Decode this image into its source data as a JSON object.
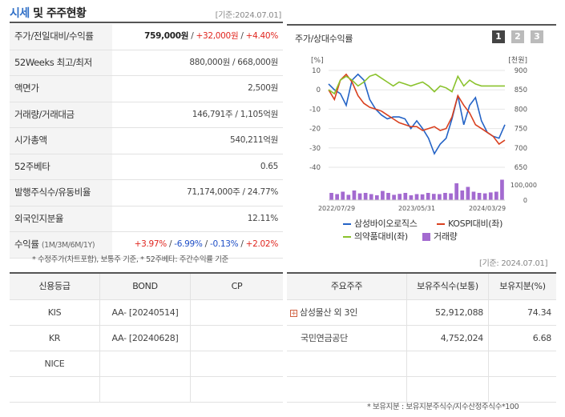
{
  "header": {
    "title_accent": "시세",
    "title_rest": " 및 주주현황",
    "base_date": "[기준:2024.07.01]"
  },
  "price_table": {
    "rows": [
      {
        "label": "주가/전일대비/수익률",
        "value_price": "759,000원",
        "sep1": " / ",
        "value_change": "+32,000원",
        "sep2": " / ",
        "value_rate": "+4.40%"
      },
      {
        "label": "52Weeks 최고/최저",
        "value": "880,000원 / 668,000원"
      },
      {
        "label": "액면가",
        "value": "2,500원"
      },
      {
        "label": "거래량/거래대금",
        "value": "146,791주 / 1,105억원"
      },
      {
        "label": "시가총액",
        "value": "540,211억원"
      },
      {
        "label": "52주베타",
        "value": "0.65"
      },
      {
        "label": "발행주식수/유동비율",
        "value": "71,174,000주 / 24.77%"
      },
      {
        "label": "외국인지분율",
        "value": "12.11%"
      },
      {
        "label": "수익률",
        "label_sub": "(1M/3M/6M/1Y)",
        "r1": "+3.97%",
        "r2": "-6.99%",
        "r3": "-0.13%",
        "r4": "+2.02%",
        "sep": " / "
      }
    ],
    "note": "* 수정주가(차트포함), 보통주 기준, * 52주베타: 주간수익률 기준"
  },
  "chart_panel": {
    "title": "주가/상대수익률",
    "tabs": [
      "1",
      "2",
      "3"
    ],
    "tab_colors": [
      "#444444",
      "#bbbbbb",
      "#bbbbbb"
    ]
  },
  "chart_data": {
    "type": "line",
    "left_axis_unit": "[%]",
    "right_axis_unit": "[천원]",
    "left_ticks": [
      "10",
      "0",
      "-10",
      "-20",
      "-30",
      "-40"
    ],
    "right_ticks": [
      "900",
      "850",
      "800",
      "750",
      "700",
      "650"
    ],
    "volume_ticks": [
      "100,000",
      "0"
    ],
    "x_ticks": [
      "2022/07/29",
      "2023/05/31",
      "2024/03/29"
    ],
    "ylim_left": [
      -40,
      10
    ],
    "series": [
      {
        "name": "삼성바이오로직스",
        "color": "#2463c6",
        "values": [
          3,
          0,
          -2,
          -8,
          5,
          8,
          5,
          -5,
          -10,
          -13,
          -15,
          -14,
          -14,
          -15,
          -20,
          -16,
          -20,
          -25,
          -33,
          -28,
          -25,
          -15,
          -3,
          -18,
          -8,
          -4,
          -16,
          -22,
          -24,
          -25,
          -18
        ]
      },
      {
        "name": "KOSPI대비(좌)",
        "color": "#d9401f",
        "values": [
          0,
          -5,
          5,
          8,
          4,
          -3,
          -7,
          -9,
          -10,
          -11,
          -13,
          -15,
          -17,
          -18,
          -19,
          -19,
          -21,
          -20,
          -19,
          -21,
          -20,
          -14,
          -3,
          -8,
          -12,
          -18,
          -20,
          -22,
          -24,
          -28,
          -26
        ]
      },
      {
        "name": "의약품대비(좌)",
        "color": "#8ac22c",
        "values": [
          0,
          -2,
          5,
          7,
          5,
          2,
          4,
          7,
          8,
          6,
          4,
          2,
          4,
          3,
          2,
          3,
          4,
          2,
          -1,
          2,
          1,
          -1,
          7,
          2,
          5,
          3,
          2,
          2,
          2,
          2,
          2
        ]
      }
    ],
    "volume": {
      "name": "거래량",
      "color": "#a36ad0",
      "values": [
        30,
        25,
        35,
        22,
        40,
        28,
        30,
        25,
        20,
        38,
        30,
        22,
        26,
        30,
        20,
        25,
        24,
        30,
        26,
        25,
        30,
        28,
        70,
        40,
        55,
        35,
        30,
        28,
        32,
        35,
        85
      ]
    }
  },
  "base_date_2": "[기준: 2024.07.01]",
  "credit_table": {
    "headers": [
      "신용등급",
      "BOND",
      "CP"
    ],
    "rows": [
      [
        "KIS",
        "AA-  [20240514]",
        ""
      ],
      [
        "KR",
        "AA-  [20240628]",
        ""
      ],
      [
        "NICE",
        "",
        ""
      ],
      [
        "",
        "",
        ""
      ]
    ]
  },
  "holder_table": {
    "headers": [
      "주요주주",
      "보유주식수(보통)",
      "보유지분(%)"
    ],
    "rows": [
      {
        "name": "삼성물산 외 3인",
        "shares": "52,912,088",
        "pct": "74.34",
        "expandable": true
      },
      {
        "name": "국민연금공단",
        "shares": "4,752,024",
        "pct": "6.68",
        "expandable": false
      },
      {
        "name": "",
        "shares": "",
        "pct": "",
        "expandable": false
      },
      {
        "name": "",
        "shares": "",
        "pct": "",
        "expandable": false
      }
    ],
    "note": "* 보유지분 : 보유지분주식수/지수산정주식수*100"
  }
}
